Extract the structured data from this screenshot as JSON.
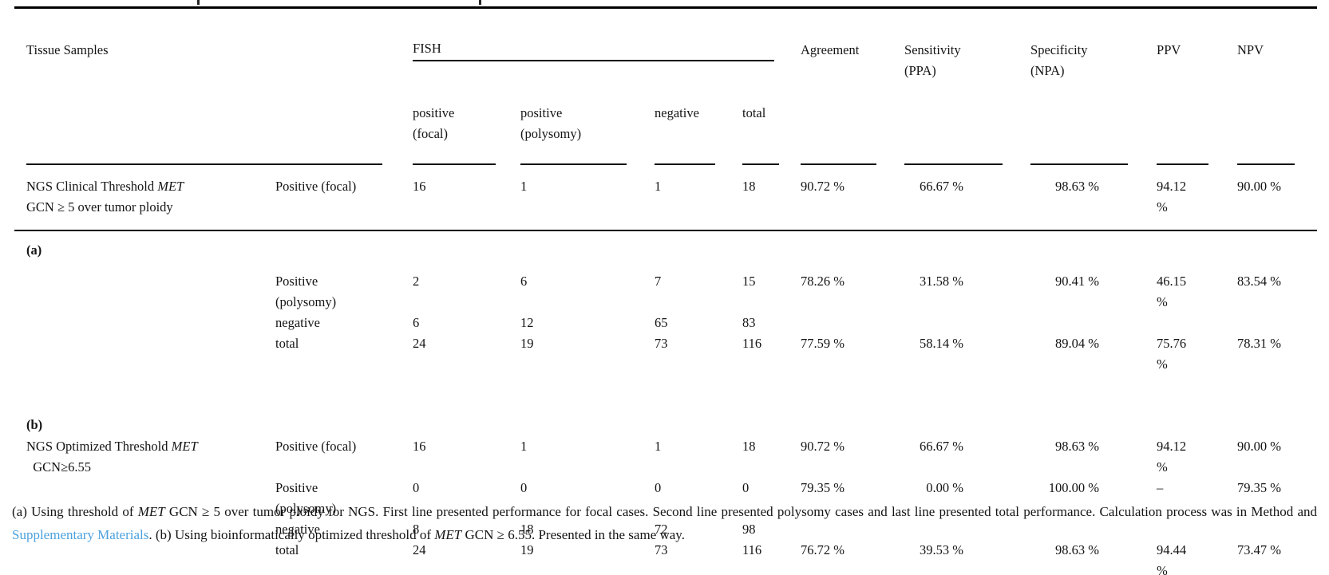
{
  "colors": {
    "link": "#4ba1dd",
    "text": "#141414",
    "rule": "#000000"
  },
  "table": {
    "header": {
      "tissue_samples": "Tissue Samples",
      "fish": "FISH",
      "fish_sub": {
        "positive_focal": [
          "positive",
          "(focal)"
        ],
        "positive_polysomy": [
          "positive",
          "(polysomy)"
        ],
        "negative": "negative",
        "total": "total"
      },
      "agreement": "Agreement",
      "sensitivity": [
        "Sensitivity",
        "(PPA)"
      ],
      "specificity": [
        "Specificity",
        "(NPA)"
      ],
      "ppv": "PPV",
      "npv": "NPV"
    },
    "sections": {
      "a": "(a)",
      "b": "(b)"
    },
    "rows": [
      {
        "label": [
          "NGS Clinical Threshold *MET*",
          "GCN ≥ 5 over tumor ploidy"
        ],
        "sub": "Positive (focal)",
        "focal": "16",
        "poly": "1",
        "neg": "1",
        "total": "18",
        "agr": "90.72 %",
        "sens": "66.67 %",
        "spec": "98.63 %",
        "ppv": "94.12 %",
        "npv": "90.00 %"
      },
      {
        "label": [
          ""
        ],
        "sub": [
          "Positive",
          "(polysomy)"
        ],
        "focal": "2",
        "poly": "6",
        "neg": "7",
        "total": "15",
        "agr": "78.26 %",
        "sens": "31.58 %",
        "spec": "90.41 %",
        "ppv": "46.15 %",
        "npv": "83.54 %"
      },
      {
        "label": [
          ""
        ],
        "sub": "negative",
        "focal": "6",
        "poly": "12",
        "neg": "65",
        "total": "83",
        "agr": "",
        "sens": "",
        "spec": "",
        "ppv": "",
        "npv": ""
      },
      {
        "label": [
          ""
        ],
        "sub": "total",
        "focal": "24",
        "poly": "19",
        "neg": "73",
        "total": "116",
        "agr": "77.59 %",
        "sens": "58.14 %",
        "spec": "89.04 %",
        "ppv": "75.76 %",
        "npv": "78.31 %"
      },
      {
        "label": [
          "NGS Optimized Threshold *MET*",
          "  GCN≥6.55"
        ],
        "sub": "Positive (focal)",
        "focal": "16",
        "poly": "1",
        "neg": "1",
        "total": "18",
        "agr": "90.72 %",
        "sens": "66.67 %",
        "spec": "98.63 %",
        "ppv": "94.12 %",
        "npv": "90.00 %"
      },
      {
        "label": [
          ""
        ],
        "sub": [
          "Positive",
          "(polysomy)"
        ],
        "focal": "0",
        "poly": "0",
        "neg": "0",
        "total": "0",
        "agr": "79.35 %",
        "sens": "0.00 %",
        "spec": "100.00 %",
        "ppv": "–",
        "npv": "79.35 %"
      },
      {
        "label": [
          ""
        ],
        "sub": "negative",
        "focal": "8",
        "poly": "18",
        "neg": "72",
        "total": "98",
        "agr": "",
        "sens": "",
        "spec": "",
        "ppv": "",
        "npv": ""
      },
      {
        "label": [
          ""
        ],
        "sub": "total",
        "focal": "24",
        "poly": "19",
        "neg": "73",
        "total": "116",
        "agr": "76.72 %",
        "sens": "39.53 %",
        "spec": "98.63 %",
        "ppv": "94.44 %",
        "npv": "73.47 %"
      }
    ]
  },
  "footnote": {
    "part1": "(a) Using threshold of *MET* GCN ≥ 5 over tumor ploidy for NGS. First line presented performance for focal cases. Second line presented polysomy cases and last line presented total performance. Calculation process was in Method and ",
    "link": "Supplementary Materials",
    "part2": ". (b) Using bioinformatically optimized threshold of *MET* GCN ≥ 6.55. Presented in the same way."
  }
}
